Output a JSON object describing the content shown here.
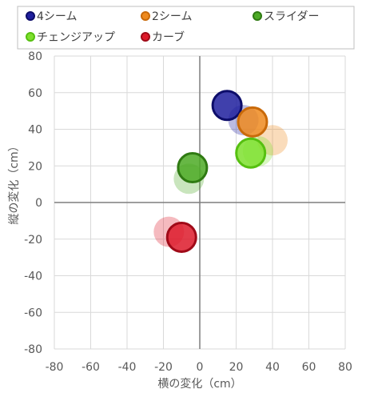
{
  "chart_data": {
    "type": "scatter",
    "title": "",
    "xlabel": "横の変化（cm）",
    "ylabel": "縦の変化（cm）",
    "xlim": [
      -80,
      80
    ],
    "ylim": [
      -80,
      80
    ],
    "x_ticks": [
      -80,
      -60,
      -40,
      -20,
      0,
      20,
      40,
      60,
      80
    ],
    "y_ticks": [
      -80,
      -60,
      -40,
      -20,
      0,
      20,
      40,
      60,
      80
    ],
    "grid": true,
    "legend_position": "top",
    "series": [
      {
        "name": "4シーム",
        "color": "#1f1f9e",
        "edge": "#0d0d6a",
        "points": [
          {
            "x": 24,
            "y": 45,
            "faded": true
          },
          {
            "x": 15,
            "y": 53,
            "faded": false
          }
        ]
      },
      {
        "name": "2シーム",
        "color": "#ee8a1e",
        "edge": "#c96a0a",
        "points": [
          {
            "x": 40,
            "y": 34,
            "faded": true
          },
          {
            "x": 29,
            "y": 44,
            "faded": false
          }
        ]
      },
      {
        "name": "スライダー",
        "color": "#4caa25",
        "edge": "#2f7a12",
        "points": [
          {
            "x": -6,
            "y": 13,
            "faded": true
          },
          {
            "x": -4,
            "y": 19,
            "faded": false
          }
        ]
      },
      {
        "name": "チェンジアップ",
        "color": "#7ee02e",
        "edge": "#56c010",
        "points": [
          {
            "x": 32,
            "y": 28,
            "faded": true
          },
          {
            "x": 28,
            "y": 27,
            "faded": false
          }
        ]
      },
      {
        "name": "カーブ",
        "color": "#dd1a2a",
        "edge": "#a00a18",
        "points": [
          {
            "x": -17,
            "y": -16,
            "faded": true
          },
          {
            "x": -10,
            "y": -19,
            "faded": false
          }
        ]
      }
    ]
  }
}
